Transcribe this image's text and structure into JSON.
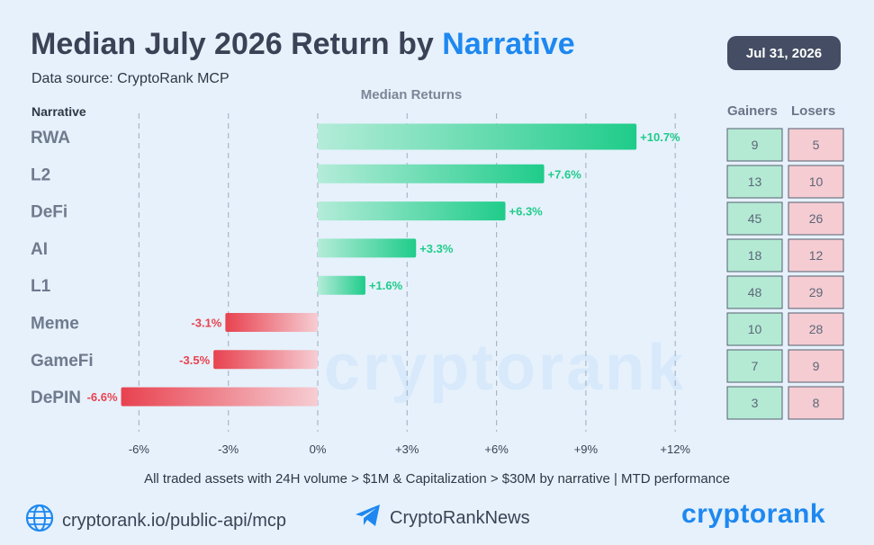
{
  "header": {
    "title_prefix": "Median July 2026 Return by ",
    "title_accent": "Narrative",
    "subtitle": "Data source: CryptoRank MCP",
    "date": "Jul 31, 2026"
  },
  "table": {
    "narrative_header": "Narrative",
    "gainers_header": "Gainers",
    "losers_header": "Losers"
  },
  "footer": {
    "note": "All traded assets with 24H volume > $1M & Capitalization > $30M by narrative | MTD performance",
    "url": "cryptorank.io/public-api/mcp",
    "telegram": "CryptoRankNews",
    "brand": "cryptorank",
    "watermark": "cryptorank"
  },
  "colors": {
    "accent": "#1e88f0",
    "positive": "#1fcc8a",
    "negative": "#e8424f",
    "gainer_cell": "#b4ead4",
    "loser_cell": "#f4ccd2"
  },
  "icons": [
    "globe-icon",
    "telegram-icon"
  ],
  "chart_data": {
    "type": "bar",
    "orientation": "horizontal",
    "title": "Median July 2026 Return by Narrative",
    "xlabel": "Median Returns",
    "ylabel": "Narrative",
    "xlim": [
      -6,
      12
    ],
    "x_ticks": [
      "-6%",
      "-3%",
      "0%",
      "+3%",
      "+6%",
      "+9%",
      "+12%"
    ],
    "categories": [
      "RWA",
      "L2",
      "DeFi",
      "AI",
      "L1",
      "Meme",
      "GameFi",
      "DePIN"
    ],
    "values": [
      10.7,
      7.6,
      6.3,
      3.3,
      1.6,
      -3.1,
      -3.5,
      -6.6
    ],
    "value_labels": [
      "+10.7%",
      "+7.6%",
      "+6.3%",
      "+3.3%",
      "+1.6%",
      "-3.1%",
      "-3.5%",
      "-6.6%"
    ],
    "gainers": [
      9,
      13,
      45,
      18,
      48,
      10,
      7,
      3
    ],
    "losers": [
      5,
      10,
      26,
      12,
      29,
      28,
      9,
      8
    ],
    "grid": true
  }
}
